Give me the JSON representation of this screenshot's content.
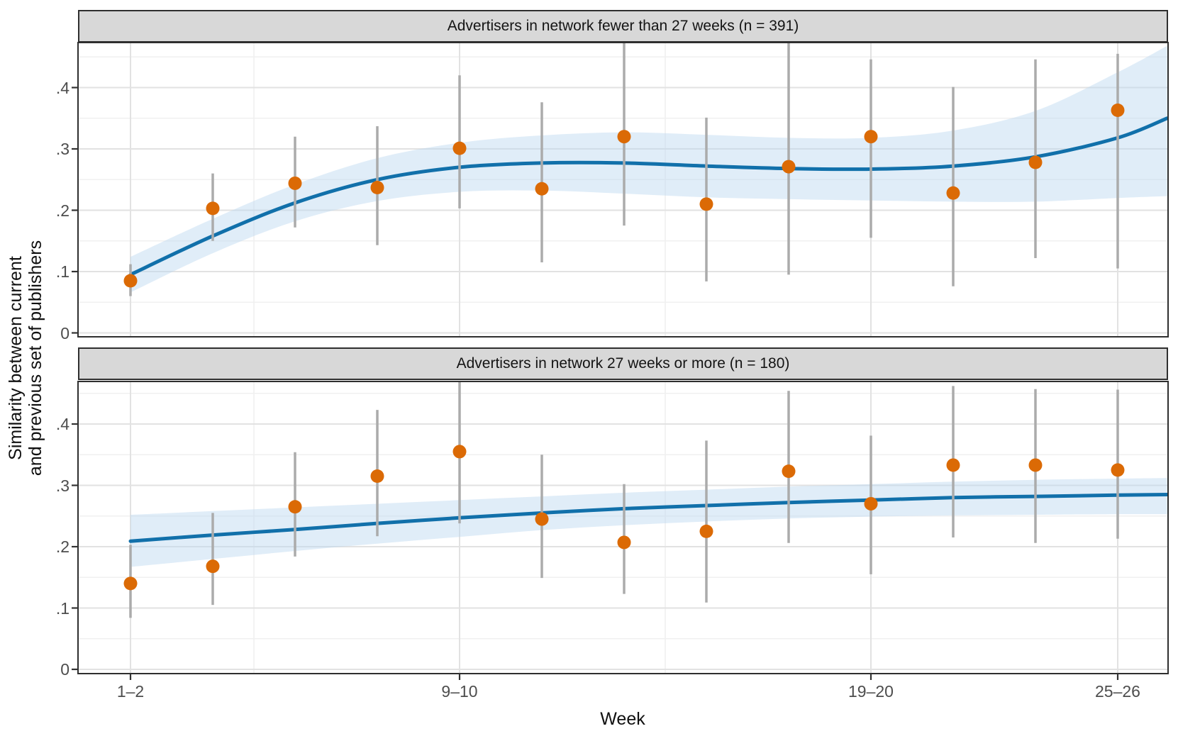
{
  "figure": {
    "y_axis_title_lines": [
      "Similarity between current",
      "and previous set of publishers"
    ],
    "x_axis_title": "Week"
  },
  "x_axis": {
    "tick_labels": [
      "1–2",
      "9–10",
      "19–20",
      "25–26"
    ],
    "tick_weeks": [
      1.5,
      9.5,
      19.5,
      25.5
    ],
    "minor_weeks": [
      4.5,
      14.5
    ]
  },
  "y_axis": {
    "tick_labels": [
      "0",
      ".1",
      ".2",
      ".3",
      ".4"
    ],
    "tick_values": [
      0,
      0.1,
      0.2,
      0.3,
      0.4
    ],
    "minor_values": [
      0.05,
      0.15,
      0.25,
      0.35,
      0.45
    ]
  },
  "style": {
    "point_color": "#DB6A05",
    "line_color": "#1170AA",
    "band_color": "#BBD7EF",
    "band_opacity": 0.45,
    "errorbar_color": "#ABABAB",
    "strip_bg": "#D8D8D8",
    "panel_border": "#2F2F2F",
    "grid_major": "#E2E2E2",
    "grid_minor": "#F0F0F0",
    "tick_mark_color": "#333333"
  },
  "chart_data": [
    {
      "type": "scatter",
      "facet_label": "Advertisers in network fewer than 27 weeks (n = 391)",
      "n": 391,
      "x_weeks": [
        1.5,
        3.5,
        5.5,
        7.5,
        9.5,
        11.5,
        13.5,
        15.5,
        17.5,
        19.5,
        21.5,
        23.5,
        25.5
      ],
      "values": [
        0.085,
        0.203,
        0.244,
        0.237,
        0.301,
        0.235,
        0.32,
        0.21,
        0.271,
        0.32,
        0.228,
        0.278,
        0.363
      ],
      "ci_low": [
        0.06,
        0.15,
        0.172,
        0.143,
        0.203,
        0.115,
        0.175,
        0.084,
        0.095,
        0.155,
        0.076,
        0.122,
        0.105
      ],
      "ci_high": [
        0.112,
        0.26,
        0.32,
        0.337,
        0.42,
        0.376,
        0.473,
        0.351,
        0.473,
        0.446,
        0.401,
        0.446,
        0.455
      ],
      "smooth": {
        "weeks": [
          1.5,
          3.5,
          5.5,
          7.5,
          9.5,
          11.5,
          13.5,
          15.5,
          17.5,
          19.5,
          21.5,
          23.5,
          25.5,
          26.7
        ],
        "line": [
          0.095,
          0.158,
          0.212,
          0.25,
          0.27,
          0.277,
          0.277,
          0.272,
          0.268,
          0.267,
          0.272,
          0.287,
          0.318,
          0.35
        ],
        "upper": [
          0.124,
          0.186,
          0.242,
          0.285,
          0.31,
          0.322,
          0.327,
          0.323,
          0.318,
          0.318,
          0.33,
          0.362,
          0.425,
          0.468
        ],
        "lower": [
          0.066,
          0.13,
          0.182,
          0.215,
          0.23,
          0.232,
          0.227,
          0.221,
          0.218,
          0.216,
          0.214,
          0.214,
          0.22,
          0.223
        ]
      },
      "ylim": [
        0,
        0.47
      ]
    },
    {
      "type": "scatter",
      "facet_label": "Advertisers in network 27 weeks or more (n = 180)",
      "n": 180,
      "x_weeks": [
        1.5,
        3.5,
        5.5,
        7.5,
        9.5,
        11.5,
        13.5,
        15.5,
        17.5,
        19.5,
        21.5,
        23.5,
        25.5
      ],
      "values": [
        0.14,
        0.168,
        0.265,
        0.315,
        0.355,
        0.245,
        0.207,
        0.225,
        0.323,
        0.27,
        0.333,
        0.333,
        0.325
      ],
      "ci_low": [
        0.084,
        0.105,
        0.184,
        0.217,
        0.238,
        0.149,
        0.123,
        0.109,
        0.206,
        0.155,
        0.215,
        0.206,
        0.213
      ],
      "ci_high": [
        0.203,
        0.255,
        0.354,
        0.423,
        0.475,
        0.35,
        0.302,
        0.373,
        0.454,
        0.381,
        0.462,
        0.457,
        0.456
      ],
      "smooth": {
        "weeks": [
          1.5,
          3.5,
          5.5,
          7.5,
          9.5,
          11.5,
          13.5,
          15.5,
          17.5,
          19.5,
          21.5,
          23.5,
          25.5,
          26.7
        ],
        "line": [
          0.209,
          0.219,
          0.228,
          0.238,
          0.247,
          0.255,
          0.262,
          0.267,
          0.272,
          0.276,
          0.28,
          0.282,
          0.284,
          0.285
        ],
        "upper": [
          0.252,
          0.258,
          0.264,
          0.27,
          0.276,
          0.282,
          0.288,
          0.293,
          0.298,
          0.302,
          0.306,
          0.309,
          0.311,
          0.312
        ],
        "lower": [
          0.167,
          0.18,
          0.193,
          0.205,
          0.216,
          0.227,
          0.235,
          0.241,
          0.246,
          0.249,
          0.251,
          0.252,
          0.253,
          0.253
        ]
      },
      "ylim": [
        0,
        0.47
      ]
    }
  ]
}
